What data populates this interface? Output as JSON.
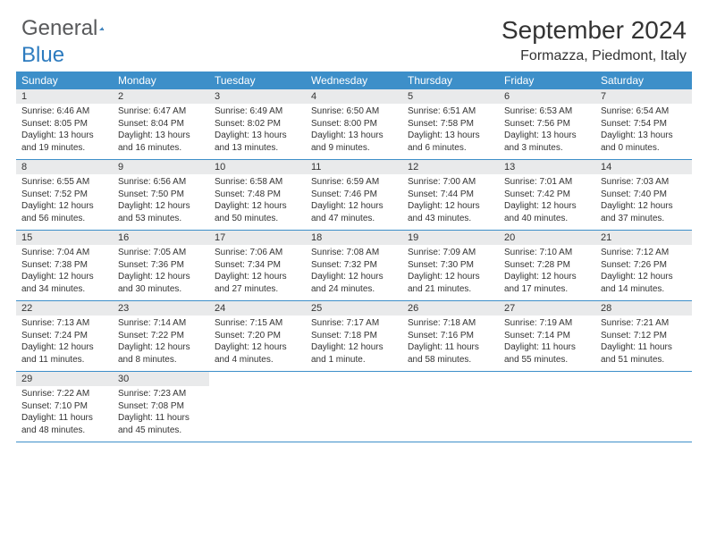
{
  "logo": {
    "main": "General",
    "sub": "Blue"
  },
  "title": "September 2024",
  "location": "Formazza, Piedmont, Italy",
  "colors": {
    "header_bg": "#3d8fc9",
    "header_text": "#ffffff",
    "daynum_bg": "#e9eaeb",
    "border": "#3d8fc9",
    "logo_main": "#58595b",
    "logo_sub": "#2d7bbf"
  },
  "dayNames": [
    "Sunday",
    "Monday",
    "Tuesday",
    "Wednesday",
    "Thursday",
    "Friday",
    "Saturday"
  ],
  "days": [
    {
      "n": "1",
      "sr": "6:46 AM",
      "ss": "8:05 PM",
      "dl": "13 hours and 19 minutes."
    },
    {
      "n": "2",
      "sr": "6:47 AM",
      "ss": "8:04 PM",
      "dl": "13 hours and 16 minutes."
    },
    {
      "n": "3",
      "sr": "6:49 AM",
      "ss": "8:02 PM",
      "dl": "13 hours and 13 minutes."
    },
    {
      "n": "4",
      "sr": "6:50 AM",
      "ss": "8:00 PM",
      "dl": "13 hours and 9 minutes."
    },
    {
      "n": "5",
      "sr": "6:51 AM",
      "ss": "7:58 PM",
      "dl": "13 hours and 6 minutes."
    },
    {
      "n": "6",
      "sr": "6:53 AM",
      "ss": "7:56 PM",
      "dl": "13 hours and 3 minutes."
    },
    {
      "n": "7",
      "sr": "6:54 AM",
      "ss": "7:54 PM",
      "dl": "13 hours and 0 minutes."
    },
    {
      "n": "8",
      "sr": "6:55 AM",
      "ss": "7:52 PM",
      "dl": "12 hours and 56 minutes."
    },
    {
      "n": "9",
      "sr": "6:56 AM",
      "ss": "7:50 PM",
      "dl": "12 hours and 53 minutes."
    },
    {
      "n": "10",
      "sr": "6:58 AM",
      "ss": "7:48 PM",
      "dl": "12 hours and 50 minutes."
    },
    {
      "n": "11",
      "sr": "6:59 AM",
      "ss": "7:46 PM",
      "dl": "12 hours and 47 minutes."
    },
    {
      "n": "12",
      "sr": "7:00 AM",
      "ss": "7:44 PM",
      "dl": "12 hours and 43 minutes."
    },
    {
      "n": "13",
      "sr": "7:01 AM",
      "ss": "7:42 PM",
      "dl": "12 hours and 40 minutes."
    },
    {
      "n": "14",
      "sr": "7:03 AM",
      "ss": "7:40 PM",
      "dl": "12 hours and 37 minutes."
    },
    {
      "n": "15",
      "sr": "7:04 AM",
      "ss": "7:38 PM",
      "dl": "12 hours and 34 minutes."
    },
    {
      "n": "16",
      "sr": "7:05 AM",
      "ss": "7:36 PM",
      "dl": "12 hours and 30 minutes."
    },
    {
      "n": "17",
      "sr": "7:06 AM",
      "ss": "7:34 PM",
      "dl": "12 hours and 27 minutes."
    },
    {
      "n": "18",
      "sr": "7:08 AM",
      "ss": "7:32 PM",
      "dl": "12 hours and 24 minutes."
    },
    {
      "n": "19",
      "sr": "7:09 AM",
      "ss": "7:30 PM",
      "dl": "12 hours and 21 minutes."
    },
    {
      "n": "20",
      "sr": "7:10 AM",
      "ss": "7:28 PM",
      "dl": "12 hours and 17 minutes."
    },
    {
      "n": "21",
      "sr": "7:12 AM",
      "ss": "7:26 PM",
      "dl": "12 hours and 14 minutes."
    },
    {
      "n": "22",
      "sr": "7:13 AM",
      "ss": "7:24 PM",
      "dl": "12 hours and 11 minutes."
    },
    {
      "n": "23",
      "sr": "7:14 AM",
      "ss": "7:22 PM",
      "dl": "12 hours and 8 minutes."
    },
    {
      "n": "24",
      "sr": "7:15 AM",
      "ss": "7:20 PM",
      "dl": "12 hours and 4 minutes."
    },
    {
      "n": "25",
      "sr": "7:17 AM",
      "ss": "7:18 PM",
      "dl": "12 hours and 1 minute."
    },
    {
      "n": "26",
      "sr": "7:18 AM",
      "ss": "7:16 PM",
      "dl": "11 hours and 58 minutes."
    },
    {
      "n": "27",
      "sr": "7:19 AM",
      "ss": "7:14 PM",
      "dl": "11 hours and 55 minutes."
    },
    {
      "n": "28",
      "sr": "7:21 AM",
      "ss": "7:12 PM",
      "dl": "11 hours and 51 minutes."
    },
    {
      "n": "29",
      "sr": "7:22 AM",
      "ss": "7:10 PM",
      "dl": "11 hours and 48 minutes."
    },
    {
      "n": "30",
      "sr": "7:23 AM",
      "ss": "7:08 PM",
      "dl": "11 hours and 45 minutes."
    }
  ],
  "labels": {
    "sunrise": "Sunrise:",
    "sunset": "Sunset:",
    "daylight": "Daylight:"
  },
  "layout": {
    "startOffset": 0,
    "totalCells": 35
  }
}
